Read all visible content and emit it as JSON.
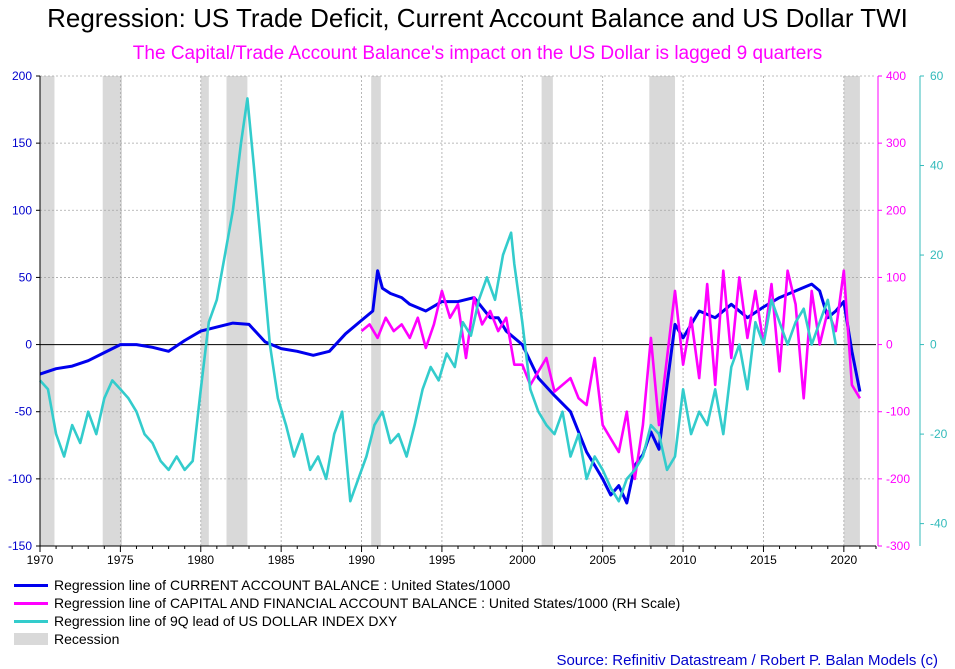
{
  "title": "Regression: US Trade Deficit, Current Account Balance and US Dollar TWI",
  "subtitle": "The Capital/Trade Account Balance's impact on the US Dollar is lagged 9 quarters",
  "source": "Source: Refinitiv Datastream / Robert P. Balan Models (c)",
  "colors": {
    "current_account": "#0000ee",
    "capital_account": "#ff00ff",
    "dollar_index": "#33cccc",
    "recession": "#d9d9d9",
    "grid": "#a6a6a6"
  },
  "legend": [
    {
      "label": "Regression line of CURRENT ACCOUNT BALANCE : United States/1000",
      "color": "#0000ee",
      "kind": "line"
    },
    {
      "label": "Regression line of CAPITAL AND FINANCIAL ACCOUNT BALANCE : United States/1000 (RH Scale)",
      "color": "#ff00ff",
      "kind": "line"
    },
    {
      "label": "Regression line of 9Q lead of US DOLLAR INDEX DXY",
      "color": "#33cccc",
      "kind": "line"
    },
    {
      "label": "Recession",
      "color": "#d9d9d9",
      "kind": "box"
    }
  ],
  "chart_data": {
    "type": "line",
    "x_range": [
      1970,
      2022
    ],
    "x_ticks": [
      1970,
      1975,
      1980,
      1985,
      1990,
      1995,
      2000,
      2005,
      2010,
      2015,
      2020
    ],
    "y_left": {
      "range": [
        -150,
        200
      ],
      "ticks": [
        -150,
        -100,
        -50,
        0,
        50,
        100,
        150,
        200
      ],
      "color": "#0000cc"
    },
    "y_right1": {
      "range": [
        -300,
        400
      ],
      "ticks": [
        -300,
        -200,
        -100,
        0,
        100,
        200,
        300,
        400
      ],
      "color": "#ff00ff"
    },
    "y_right2": {
      "range": [
        -45,
        60
      ],
      "ticks": [
        -40,
        -20,
        0,
        20,
        40,
        60
      ],
      "color": "#33bbbb"
    },
    "grid": true,
    "legend_position": "bottom-left",
    "recessions": [
      [
        1970.0,
        1970.9
      ],
      [
        1973.9,
        1975.1
      ],
      [
        1980.0,
        1980.5
      ],
      [
        1981.6,
        1982.9
      ],
      [
        1990.6,
        1991.2
      ],
      [
        2001.2,
        2001.9
      ],
      [
        2007.9,
        2009.5
      ],
      [
        2020.0,
        2021.0
      ]
    ],
    "series": [
      {
        "name": "Regression line of CURRENT ACCOUNT BALANCE : United States/1000",
        "axis": "left",
        "color": "#0000ee",
        "x": [
          1970,
          1971,
          1972,
          1973,
          1974,
          1975,
          1976,
          1977,
          1978,
          1979,
          1980,
          1981,
          1982,
          1983,
          1984,
          1985,
          1986,
          1987,
          1988,
          1989,
          1990,
          1990.7,
          1991.0,
          1991.3,
          1991.8,
          1992.5,
          1993,
          1994,
          1995,
          1996,
          1997,
          1998,
          1998.5,
          1999,
          2000,
          2001,
          2002,
          2003,
          2004,
          2004.5,
          2005,
          2005.5,
          2006,
          2006.5,
          2007,
          2007.5,
          2008,
          2008.5,
          2009,
          2009.5,
          2010,
          2011,
          2012,
          2013,
          2014,
          2015,
          2016,
          2017,
          2018,
          2018.5,
          2019,
          2019.5,
          2020,
          2020.5,
          2021
        ],
        "y": [
          -22,
          -18,
          -16,
          -12,
          -6,
          0,
          0,
          -2,
          -5,
          3,
          10,
          13,
          16,
          15,
          2,
          -3,
          -5,
          -8,
          -5,
          8,
          18,
          25,
          55,
          42,
          38,
          35,
          30,
          25,
          32,
          32,
          35,
          20,
          20,
          10,
          0,
          -25,
          -38,
          -50,
          -80,
          -90,
          -100,
          -112,
          -105,
          -118,
          -90,
          -82,
          -65,
          -78,
          -30,
          15,
          5,
          25,
          20,
          30,
          20,
          28,
          35,
          40,
          45,
          40,
          20,
          25,
          32,
          -5,
          -35
        ]
      },
      {
        "name": "Regression line of CAPITAL AND FINANCIAL ACCOUNT BALANCE : United States/1000 (RH Scale)",
        "axis": "right1",
        "color": "#ff00ff",
        "x": [
          1990,
          1990.5,
          1991,
          1991.5,
          1992,
          1992.5,
          1993,
          1993.5,
          1994,
          1994.5,
          1995,
          1995.5,
          1996,
          1996.5,
          1997,
          1997.5,
          1998,
          1998.5,
          1999,
          1999.5,
          2000,
          2000.5,
          2001,
          2001.5,
          2002,
          2002.5,
          2003,
          2003.5,
          2004,
          2004.5,
          2005,
          2005.5,
          2006,
          2006.5,
          2007,
          2007.5,
          2008,
          2008.5,
          2009,
          2009.5,
          2010,
          2010.5,
          2011,
          2011.5,
          2012,
          2012.5,
          2013,
          2013.5,
          2014,
          2014.5,
          2015,
          2015.5,
          2016,
          2016.5,
          2017,
          2017.5,
          2018,
          2018.5,
          2019,
          2019.5,
          2020,
          2020.5,
          2021
        ],
        "y": [
          20,
          30,
          10,
          40,
          20,
          30,
          10,
          40,
          -5,
          30,
          80,
          40,
          60,
          -20,
          70,
          30,
          50,
          20,
          40,
          -30,
          -30,
          -60,
          -40,
          -20,
          -70,
          -60,
          -50,
          -80,
          -90,
          -20,
          -120,
          -140,
          -160,
          -100,
          -200,
          -120,
          10,
          -120,
          -20,
          80,
          -30,
          40,
          -50,
          90,
          -60,
          110,
          -20,
          100,
          10,
          80,
          0,
          90,
          -40,
          110,
          60,
          -80,
          80,
          0,
          50,
          20,
          110,
          -60,
          -80
        ]
      },
      {
        "name": "Regression line of 9Q lead of US DOLLAR INDEX DXY",
        "axis": "right2",
        "color": "#33cccc",
        "x": [
          1970,
          1970.5,
          1971,
          1971.5,
          1972,
          1972.5,
          1973,
          1973.5,
          1974,
          1974.5,
          1975,
          1975.5,
          1976,
          1976.5,
          1977,
          1977.5,
          1978,
          1978.5,
          1979,
          1979.5,
          1980,
          1980.5,
          1981,
          1981.5,
          1982,
          1982.5,
          1982.9,
          1983.3,
          1983.8,
          1984.3,
          1984.8,
          1985.3,
          1985.8,
          1986.3,
          1986.8,
          1987.3,
          1987.8,
          1988.3,
          1988.8,
          1989.3,
          1989.8,
          1990.3,
          1990.8,
          1991.3,
          1991.8,
          1992.3,
          1992.8,
          1993.3,
          1993.8,
          1994.3,
          1994.8,
          1995.3,
          1995.8,
          1996.3,
          1996.8,
          1997.3,
          1997.8,
          1998.3,
          1998.8,
          1999.3,
          1999.5,
          2000,
          2000.5,
          2001,
          2001.5,
          2002,
          2002.5,
          2003,
          2003.5,
          2004,
          2004.5,
          2005,
          2005.5,
          2006,
          2006.5,
          2007,
          2007.5,
          2008,
          2008.5,
          2009,
          2009.5,
          2010,
          2010.5,
          2011,
          2011.5,
          2012,
          2012.5,
          2013,
          2013.5,
          2014,
          2014.5,
          2015,
          2015.5,
          2016,
          2016.5,
          2017,
          2017.5,
          2018,
          2018.5,
          2019,
          2019.5
        ],
        "y": [
          -8,
          -10,
          -20,
          -25,
          -18,
          -22,
          -15,
          -20,
          -12,
          -8,
          -10,
          -12,
          -15,
          -20,
          -22,
          -26,
          -28,
          -25,
          -28,
          -26,
          -10,
          5,
          10,
          20,
          30,
          45,
          55,
          40,
          20,
          0,
          -12,
          -18,
          -25,
          -20,
          -28,
          -25,
          -30,
          -20,
          -15,
          -35,
          -30,
          -25,
          -18,
          -15,
          -22,
          -20,
          -25,
          -18,
          -10,
          -5,
          -8,
          -2,
          -5,
          5,
          2,
          10,
          15,
          10,
          20,
          25,
          18,
          5,
          -10,
          -15,
          -18,
          -20,
          -15,
          -25,
          -20,
          -30,
          -25,
          -28,
          -32,
          -35,
          -30,
          -28,
          -25,
          -18,
          -20,
          -28,
          -25,
          -10,
          -20,
          -15,
          -18,
          -10,
          -20,
          -5,
          0,
          -10,
          5,
          0,
          10,
          5,
          0,
          5,
          8,
          0,
          5,
          10,
          0
        ]
      }
    ]
  }
}
